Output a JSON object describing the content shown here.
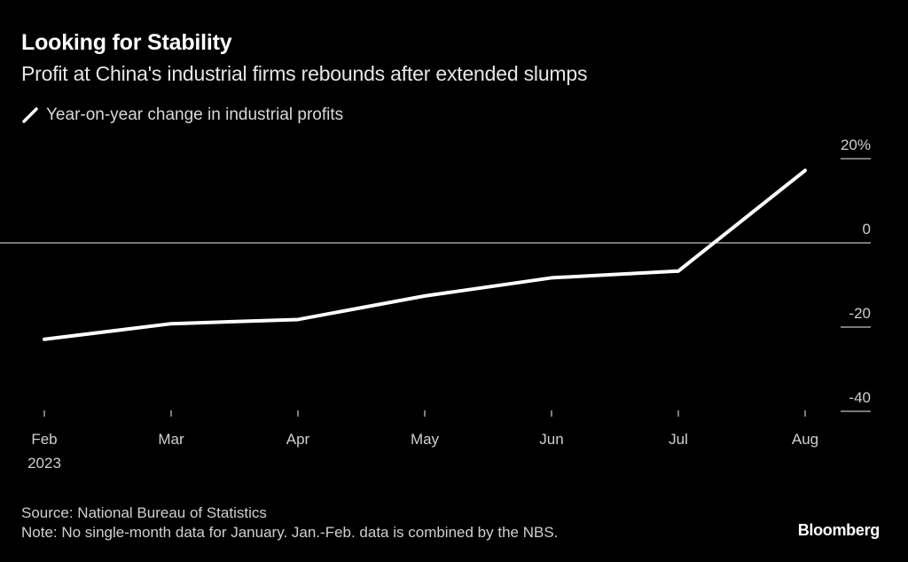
{
  "header": {
    "title": "Looking for Stability",
    "subtitle": "Profit at China's industrial firms rebounds after extended slumps"
  },
  "footer": {
    "source": "Source: National Bureau of Statistics",
    "note": "Note: No single-month data for January. Jan.-Feb. data is combined by the NBS.",
    "brand": "Bloomberg"
  },
  "colors": {
    "background": "#000000",
    "line": "#ffffff",
    "zero_line": "#bfbfbf",
    "text_muted": "#cfcfcf"
  },
  "chart_data": {
    "type": "line",
    "title": "Looking for Stability",
    "subtitle": "Profit at China's industrial firms rebounds after extended slumps",
    "xlabel": "",
    "ylabel": "",
    "categories": [
      "Feb",
      "Mar",
      "Apr",
      "May",
      "Jun",
      "Jul",
      "Aug"
    ],
    "x_tick_labels": [
      {
        "label": "Feb",
        "sublabel": "2023"
      },
      {
        "label": "Mar",
        "sublabel": ""
      },
      {
        "label": "Apr",
        "sublabel": ""
      },
      {
        "label": "May",
        "sublabel": ""
      },
      {
        "label": "Jun",
        "sublabel": ""
      },
      {
        "label": "Jul",
        "sublabel": ""
      },
      {
        "label": "Aug",
        "sublabel": ""
      }
    ],
    "series": [
      {
        "name": "Year-on-year change in industrial profits",
        "values": [
          -22.9,
          -19.2,
          -18.2,
          -12.6,
          -8.3,
          -6.7,
          17.2
        ]
      }
    ],
    "ylim": [
      -40,
      20
    ],
    "y_ticks": [
      20,
      0,
      -20,
      -40
    ],
    "y_tick_labels": [
      "20%",
      "0",
      "-20",
      "-40"
    ],
    "axis_side": "right",
    "zero_line": true,
    "grid": false,
    "legend": "top-left"
  }
}
